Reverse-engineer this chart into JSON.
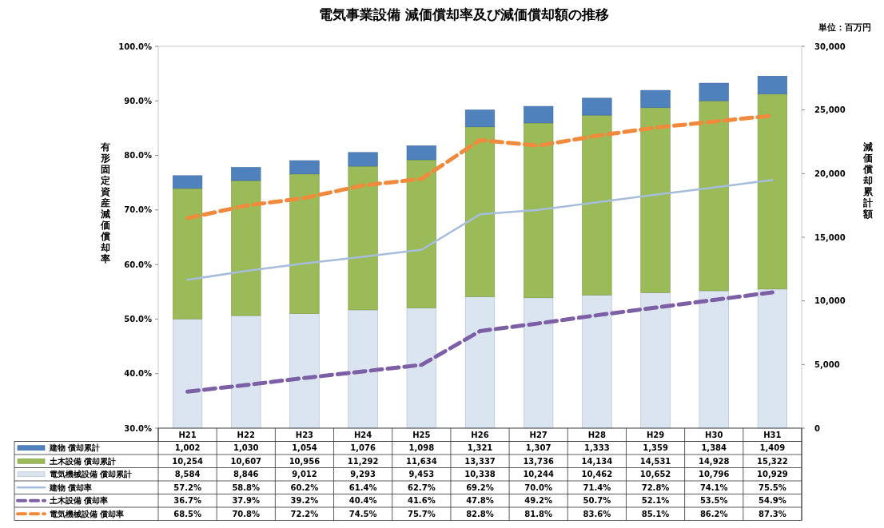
{
  "chart_data": {
    "type": "bar",
    "title": "電気事業設備 減価償却率及び減価償却額の推移",
    "ylabel": "有形固定資産減価償却率",
    "y2label": "減価償却累計額",
    "annotations": [
      "単位：百万円"
    ],
    "categories": [
      "H21",
      "H22",
      "H23",
      "H24",
      "H25",
      "H26",
      "H27",
      "H28",
      "H29",
      "H30",
      "H31"
    ],
    "stacked": true,
    "legend": "bottom",
    "ylim": [
      30,
      100
    ],
    "yticks": [
      {
        "value": 30,
        "label": "30.0%"
      },
      {
        "value": 40,
        "label": "40.0%"
      },
      {
        "value": 50,
        "label": "50.0%"
      },
      {
        "value": 60,
        "label": "60.0%"
      },
      {
        "value": 70,
        "label": "70.0%"
      },
      {
        "value": 80,
        "label": "80.0%"
      },
      {
        "value": 90,
        "label": "90.0%"
      },
      {
        "value": 100,
        "label": "100.0%"
      }
    ],
    "y2lim": [
      0,
      30000
    ],
    "y2ticks": [
      0,
      {
        "value": 5000,
        "label": "5,000"
      },
      {
        "value": 10000,
        "label": "10,000"
      },
      {
        "value": 15000,
        "label": "15,000"
      },
      {
        "value": 20000,
        "label": "20,000"
      },
      {
        "value": 25000,
        "label": "25,000"
      },
      {
        "value": 30000,
        "label": "30,000"
      }
    ],
    "series": [
      {
        "name": "電気機械設備 償却累計",
        "type": "bar",
        "axis": "y2",
        "color": "#dbe5f1",
        "values": [
          8584,
          8846,
          9012,
          9293,
          9453,
          10338,
          10244,
          10462,
          10652,
          10796,
          10929
        ],
        "value_labels": [
          "8,584",
          "8,846",
          "9,012",
          "9,293",
          "9,453",
          "10,338",
          "10,244",
          "10,462",
          "10,652",
          "10,796",
          "10,929"
        ]
      },
      {
        "name": "土木設備 償却累計",
        "type": "bar",
        "axis": "y2",
        "color": "#9bbb59",
        "values": [
          10254,
          10607,
          10956,
          11292,
          11634,
          13337,
          13736,
          14134,
          14531,
          14928,
          15322
        ],
        "value_labels": [
          "10,254",
          "10,607",
          "10,956",
          "11,292",
          "11,634",
          "13,337",
          "13,736",
          "14,134",
          "14,531",
          "14,928",
          "15,322"
        ]
      },
      {
        "name": "建物 償却累計",
        "type": "bar",
        "axis": "y2",
        "color": "#4f81bd",
        "values": [
          1002,
          1030,
          1054,
          1076,
          1098,
          1321,
          1307,
          1333,
          1359,
          1384,
          1409
        ],
        "value_labels": [
          "1,002",
          "1,030",
          "1,054",
          "1,076",
          "1,098",
          "1,321",
          "1,307",
          "1,333",
          "1,359",
          "1,384",
          "1,409"
        ]
      },
      {
        "name": "建物 償却率",
        "type": "line",
        "axis": "y",
        "color": "#a6bddb",
        "line_style": "solid",
        "values": [
          57.2,
          58.8,
          60.2,
          61.4,
          62.7,
          69.2,
          70.0,
          71.4,
          72.8,
          74.1,
          75.5
        ],
        "value_labels": [
          "57.2%",
          "58.8%",
          "60.2%",
          "61.4%",
          "62.7%",
          "69.2%",
          "70.0%",
          "71.4%",
          "72.8%",
          "74.1%",
          "75.5%"
        ]
      },
      {
        "name": "土木設備 償却率",
        "type": "line",
        "axis": "y",
        "color": "#7d5fa6",
        "line_style": "dashed",
        "values": [
          36.7,
          37.9,
          39.2,
          40.4,
          41.6,
          47.8,
          49.2,
          50.7,
          52.1,
          53.5,
          54.9
        ],
        "value_labels": [
          "36.7%",
          "37.9%",
          "39.2%",
          "40.4%",
          "41.6%",
          "47.8%",
          "49.2%",
          "50.7%",
          "52.1%",
          "53.5%",
          "54.9%"
        ]
      },
      {
        "name": "電気機械設備 償却率",
        "type": "line",
        "axis": "y",
        "color": "#f08a3c",
        "line_style": "dashed",
        "values": [
          68.5,
          70.8,
          72.2,
          74.5,
          75.7,
          82.8,
          81.8,
          83.6,
          85.1,
          86.2,
          87.3
        ],
        "value_labels": [
          "68.5%",
          "70.8%",
          "72.2%",
          "74.5%",
          "75.7%",
          "82.8%",
          "81.8%",
          "83.6%",
          "85.1%",
          "86.2%",
          "87.3%"
        ]
      }
    ]
  }
}
